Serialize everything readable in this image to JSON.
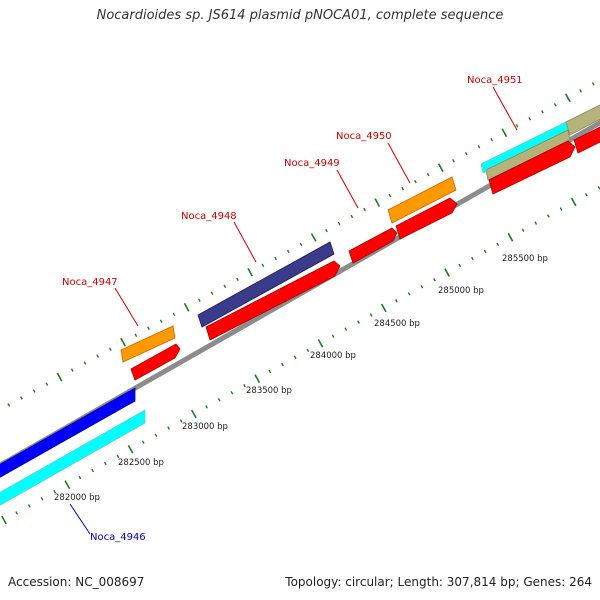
{
  "title": "Nocardioides sp. JS614 plasmid pNOCA01, complete sequence",
  "footer": {
    "accession": "Accession: NC_008697",
    "summary": "Topology: circular; Length: 307,814 bp; Genes: 264"
  },
  "colors": {
    "backbone": "#8c8c8c",
    "tick": "#1f7a1f",
    "forward_gene": "#ff0000",
    "label_red": "#cc0000",
    "label_blue": "#0000cc"
  },
  "bp_labels": [
    "282000 bp",
    "282500 bp",
    "283000 bp",
    "283500 bp",
    "284000 bp",
    "284500 bp",
    "285000 bp",
    "285500 bp"
  ],
  "genes": [
    {
      "name": "Noca_4946",
      "label_color": "#0000cc"
    },
    {
      "name": "Noca_4947",
      "label_color": "#cc0000"
    },
    {
      "name": "Noca_4948",
      "label_color": "#cc0000"
    },
    {
      "name": "Noca_4949",
      "label_color": "#cc0000"
    },
    {
      "name": "Noca_4950",
      "label_color": "#cc0000"
    },
    {
      "name": "Noca_4951",
      "label_color": "#cc0000"
    }
  ],
  "feature_colors": {
    "cds_orange": "#ff9900",
    "cds_navy": "#3b3b8c",
    "cds_blue": "#0000ff",
    "cds_cyan": "#00ffff",
    "cds_khaki": "#b4b47a"
  }
}
